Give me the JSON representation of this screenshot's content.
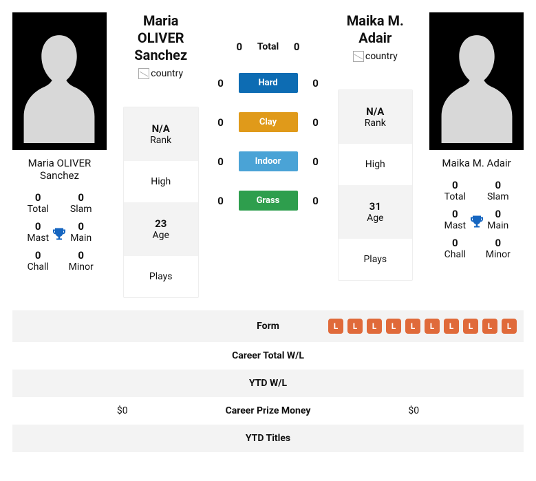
{
  "players": [
    {
      "name": "Maria OLIVER Sanchez",
      "country_alt": "country",
      "rank_value": "N/A",
      "rank_label": "Rank",
      "high_label": "High",
      "age_value": "23",
      "age_label": "Age",
      "plays_label": "Plays",
      "titles": {
        "total_num": "0",
        "total_lbl": "Total",
        "slam_num": "0",
        "slam_lbl": "Slam",
        "mast_num": "0",
        "mast_lbl": "Mast",
        "main_num": "0",
        "main_lbl": "Main",
        "chall_num": "0",
        "chall_lbl": "Chall",
        "minor_num": "0",
        "minor_lbl": "Minor"
      }
    },
    {
      "name": "Maika M. Adair",
      "country_alt": "country",
      "rank_value": "N/A",
      "rank_label": "Rank",
      "high_label": "High",
      "age_value": "31",
      "age_label": "Age",
      "plays_label": "Plays",
      "titles": {
        "total_num": "0",
        "total_lbl": "Total",
        "slam_num": "0",
        "slam_lbl": "Slam",
        "mast_num": "0",
        "mast_lbl": "Mast",
        "main_num": "0",
        "main_lbl": "Main",
        "chall_num": "0",
        "chall_lbl": "Chall",
        "minor_num": "0",
        "minor_lbl": "Minor"
      }
    }
  ],
  "h2h": {
    "rows": [
      {
        "left": "0",
        "label": "Total",
        "right": "0",
        "cls": "surface-total"
      },
      {
        "left": "0",
        "label": "Hard",
        "right": "0",
        "cls": "pill-hard"
      },
      {
        "left": "0",
        "label": "Clay",
        "right": "0",
        "cls": "pill-clay"
      },
      {
        "left": "0",
        "label": "Indoor",
        "right": "0",
        "cls": "pill-indoor"
      },
      {
        "left": "0",
        "label": "Grass",
        "right": "0",
        "cls": "pill-grass"
      }
    ]
  },
  "compare": {
    "rows": [
      {
        "left": "",
        "mid": "Form",
        "right_chips": [
          "L",
          "L",
          "L",
          "L",
          "L",
          "L",
          "L",
          "L",
          "L",
          "L"
        ]
      },
      {
        "left": "",
        "mid": "Career Total W/L",
        "right": ""
      },
      {
        "left": "",
        "mid": "YTD W/L",
        "right": ""
      },
      {
        "left": "$0",
        "mid": "Career Prize Money",
        "right": "$0"
      },
      {
        "left": "",
        "mid": "YTD Titles",
        "right": ""
      }
    ]
  },
  "colors": {
    "trophy": "#1565c0",
    "chip_bg": "#e06a3a"
  }
}
